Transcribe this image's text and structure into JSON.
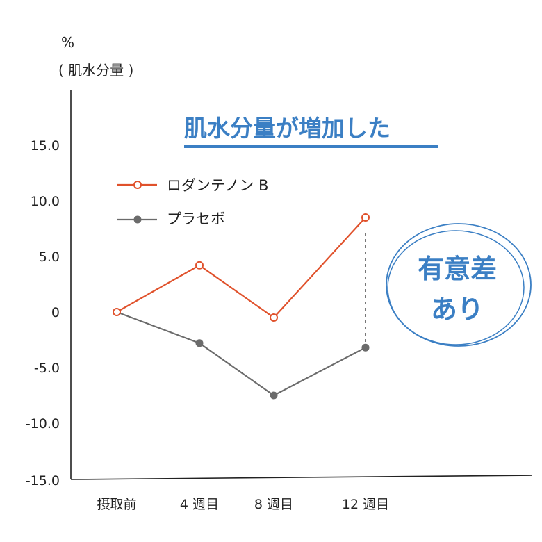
{
  "y_unit": "%",
  "y_unit_label": "( 肌水分量 )",
  "headline": "肌水分量が増加した",
  "badge": {
    "line1": "有意差",
    "line2": "あり"
  },
  "colors": {
    "series_a": "#e0512b",
    "series_b": "#6b6b6b",
    "accent": "#3b7fc4"
  },
  "chart_data": {
    "type": "line",
    "categories": [
      "摂取前",
      "4 週目",
      "8 週目",
      "12 週目"
    ],
    "series": [
      {
        "name": "ロダンテノン B",
        "values": [
          0,
          4.2,
          -0.5,
          8.5
        ],
        "marker": "open-circle"
      },
      {
        "name": "プラセボ",
        "values": [
          0,
          -2.8,
          -7.5,
          -3.2
        ],
        "marker": "filled-circle"
      }
    ],
    "yticks": [
      "15.0",
      "10.0",
      "5.0",
      "0",
      "-5.0",
      "-10.0",
      "-15.0"
    ],
    "ylim": [
      -15,
      15
    ],
    "legend_position": "top-left",
    "grid": false
  }
}
